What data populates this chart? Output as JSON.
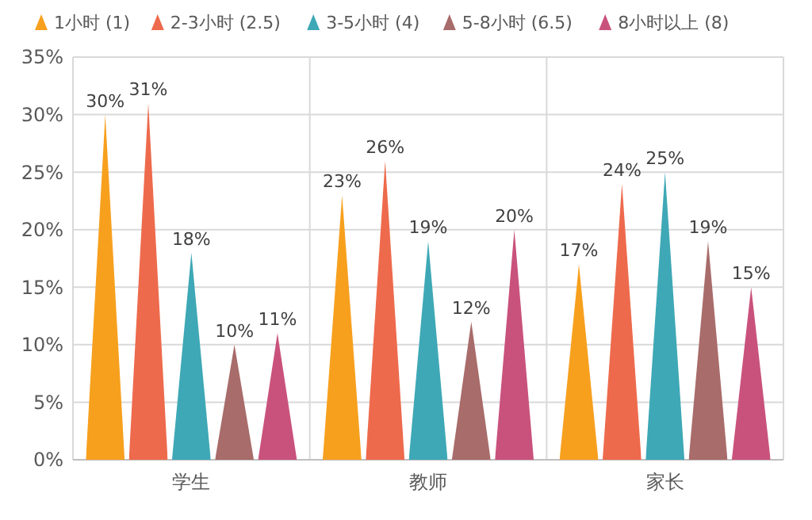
{
  "chart_data": {
    "type": "bar",
    "categories": [
      "学生",
      "教师",
      "家长"
    ],
    "series": [
      {
        "name": "1小时 (1)",
        "color": "#f7a01e",
        "values": [
          30,
          23,
          17
        ],
        "value_labels": [
          "30%",
          "23%",
          "17%"
        ]
      },
      {
        "name": "2-3小时 (2.5)",
        "color": "#ee6a4c",
        "values": [
          31,
          26,
          24
        ],
        "value_labels": [
          "31%",
          "26%",
          "24%"
        ]
      },
      {
        "name": "3-5小时 (4)",
        "color": "#3ea8b6",
        "values": [
          18,
          19,
          25
        ],
        "value_labels": [
          "18%",
          "19%",
          "25%"
        ]
      },
      {
        "name": "5-8小时 (6.5)",
        "color": "#a86c6a",
        "values": [
          10,
          12,
          19
        ],
        "value_labels": [
          "10%",
          "12%",
          "19%"
        ]
      },
      {
        "name": "8小时以上 (8)",
        "color": "#c9527c",
        "values": [
          11,
          20,
          15
        ],
        "value_labels": [
          "11%",
          "20%",
          "15%"
        ]
      }
    ],
    "ylim": [
      0,
      35
    ],
    "yticks": [
      {
        "value": 0,
        "label": "0%"
      },
      {
        "value": 5,
        "label": "5%"
      },
      {
        "value": 10,
        "label": "10%"
      },
      {
        "value": 15,
        "label": "15%"
      },
      {
        "value": 20,
        "label": "20%"
      },
      {
        "value": 25,
        "label": "25%"
      },
      {
        "value": 30,
        "label": "30%"
      },
      {
        "value": 35,
        "label": "35%"
      }
    ],
    "grid": "y",
    "legend": "top"
  }
}
